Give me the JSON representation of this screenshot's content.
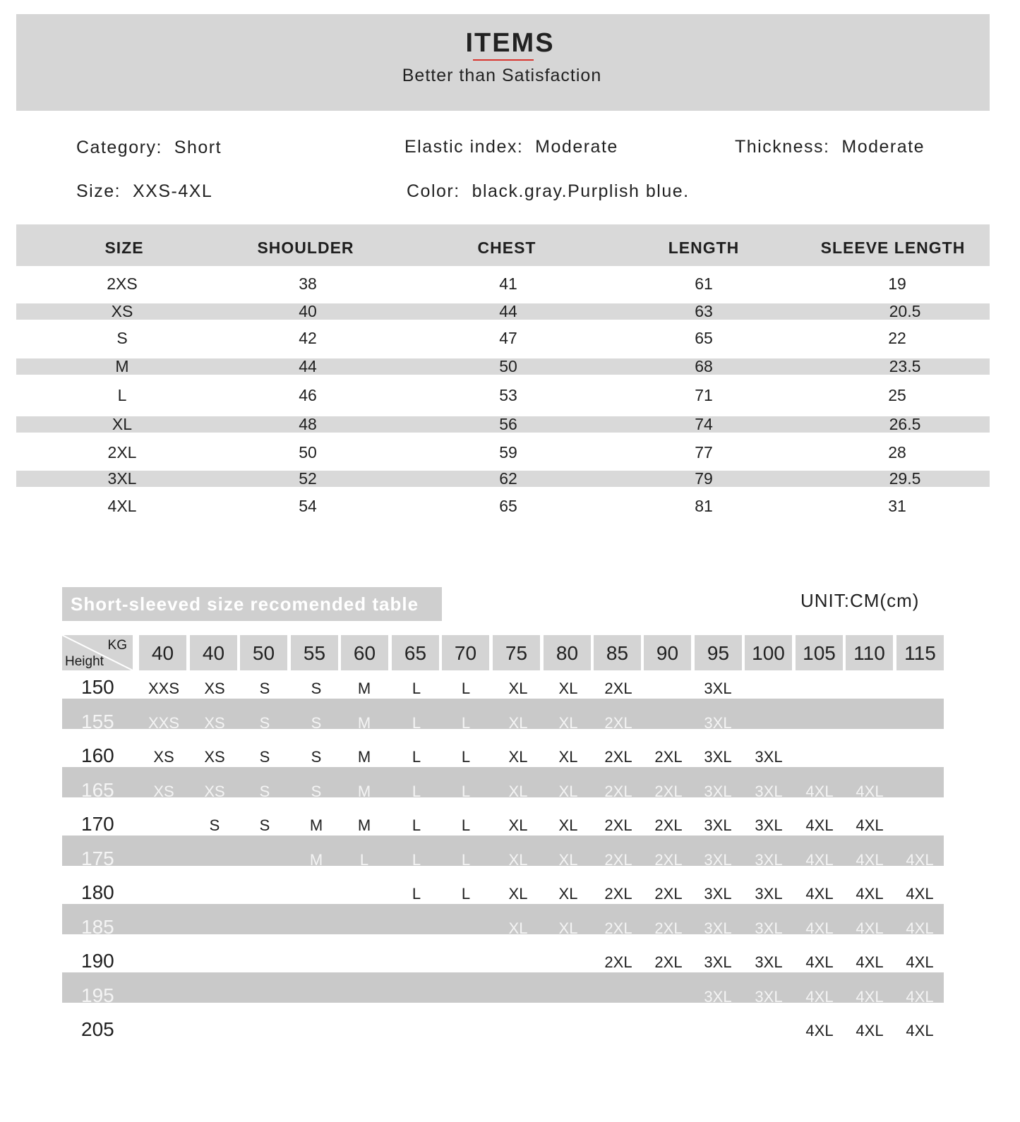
{
  "header": {
    "title": "ITEMS",
    "subtitle": "Better than Satisfaction",
    "accent_color": "#d9352f"
  },
  "info": {
    "category": "Category:  Short",
    "elastic": "Elastic index:  Moderate",
    "thickness": "Thickness:  Moderate",
    "size": "Size:  XXS-4XL",
    "color": "Color:  black.gray.Purplish blue."
  },
  "size_table": {
    "headers": [
      "SIZE",
      "SHOULDER",
      "CHEST",
      "LENGTH",
      "SLEEVE LENGTH"
    ],
    "rows": [
      [
        "2XS",
        "38",
        "41",
        "61",
        "19"
      ],
      [
        "XS",
        "40",
        "44",
        "63",
        "20.5"
      ],
      [
        "S",
        "42",
        "47",
        "65",
        "22"
      ],
      [
        "M",
        "44",
        "50",
        "68",
        "23.5"
      ],
      [
        "L",
        "46",
        "53",
        "71",
        "25"
      ],
      [
        "XL",
        "48",
        "56",
        "74",
        "26.5"
      ],
      [
        "2XL",
        "50",
        "59",
        "77",
        "28"
      ],
      [
        "3XL",
        "52",
        "62",
        "79",
        "29.5"
      ],
      [
        "4XL",
        "54",
        "65",
        "81",
        "31"
      ]
    ]
  },
  "rec_table": {
    "title": "Short-sleeved size recomended table",
    "unit": "UNIT:CM(cm)",
    "corner_top": "KG",
    "corner_bottom": "Height",
    "weights": [
      "40",
      "40",
      "50",
      "55",
      "60",
      "65",
      "70",
      "75",
      "80",
      "85",
      "90",
      "95",
      "100",
      "105",
      "110",
      "115"
    ],
    "rows": [
      {
        "height": "150",
        "sizes": [
          "XXS",
          "XS",
          "S",
          "S",
          "M",
          "L",
          "L",
          "XL",
          "XL",
          "2XL",
          "",
          "3XL",
          "",
          "",
          "",
          ""
        ]
      },
      {
        "height": "155",
        "sizes": [
          "XXS",
          "XS",
          "S",
          "S",
          "M",
          "L",
          "L",
          "XL",
          "XL",
          "2XL",
          "",
          "3XL",
          "",
          "",
          "",
          ""
        ]
      },
      {
        "height": "160",
        "sizes": [
          "XS",
          "XS",
          "S",
          "S",
          "M",
          "L",
          "L",
          "XL",
          "XL",
          "2XL",
          "2XL",
          "3XL",
          "3XL",
          "",
          "",
          ""
        ]
      },
      {
        "height": "165",
        "sizes": [
          "XS",
          "XS",
          "S",
          "S",
          "M",
          "L",
          "L",
          "XL",
          "XL",
          "2XL",
          "2XL",
          "3XL",
          "3XL",
          "4XL",
          "4XL",
          ""
        ]
      },
      {
        "height": "170",
        "sizes": [
          "",
          "S",
          "S",
          "M",
          "M",
          "L",
          "L",
          "XL",
          "XL",
          "2XL",
          "2XL",
          "3XL",
          "3XL",
          "4XL",
          "4XL",
          ""
        ]
      },
      {
        "height": "175",
        "sizes": [
          "",
          "",
          "",
          "M",
          "L",
          "L",
          "L",
          "XL",
          "XL",
          "2XL",
          "2XL",
          "3XL",
          "3XL",
          "4XL",
          "4XL",
          "4XL"
        ]
      },
      {
        "height": "180",
        "sizes": [
          "",
          "",
          "",
          "",
          "",
          "L",
          "L",
          "XL",
          "XL",
          "2XL",
          "2XL",
          "3XL",
          "3XL",
          "4XL",
          "4XL",
          "4XL"
        ]
      },
      {
        "height": "185",
        "sizes": [
          "",
          "",
          "",
          "",
          "",
          "",
          "",
          "XL",
          "XL",
          "2XL",
          "2XL",
          "3XL",
          "3XL",
          "4XL",
          "4XL",
          "4XL"
        ]
      },
      {
        "height": "190",
        "sizes": [
          "",
          "",
          "",
          "",
          "",
          "",
          "",
          "",
          "",
          "2XL",
          "2XL",
          "3XL",
          "3XL",
          "4XL",
          "4XL",
          "4XL"
        ]
      },
      {
        "height": "195",
        "sizes": [
          "",
          "",
          "",
          "",
          "",
          "",
          "",
          "",
          "",
          "",
          "",
          "3XL",
          "3XL",
          "4XL",
          "4XL",
          "4XL"
        ]
      },
      {
        "height": "205",
        "sizes": [
          "",
          "",
          "",
          "",
          "",
          "",
          "",
          "",
          "",
          "",
          "",
          "",
          "",
          "4XL",
          "4XL",
          "4XL"
        ]
      }
    ]
  }
}
